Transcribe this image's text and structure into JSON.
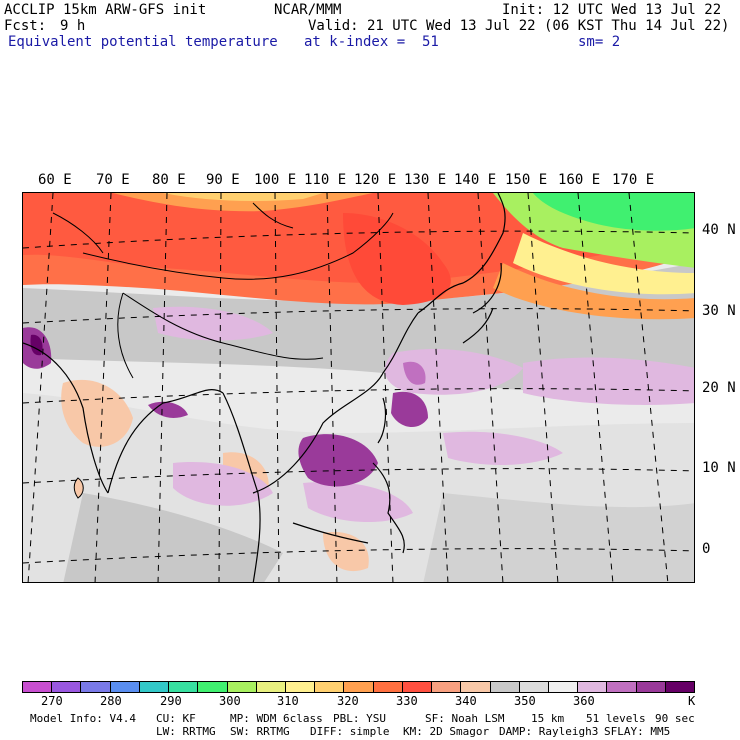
{
  "header": {
    "title": "ACCLIP 15km ARW-GFS init",
    "org": "NCAR/MMM",
    "init": "Init: 12 UTC Wed 13 Jul 22",
    "fcst_label": "Fcst:",
    "fcst_value": "9 h",
    "valid": "Valid: 21 UTC Wed 13 Jul 22 (06 KST Thu 14 Jul 22)",
    "field": "Equivalent potential temperature",
    "level": "at k-index =  51",
    "smooth": "sm= 2"
  },
  "map": {
    "longitudes": [
      "60 E",
      "70 E",
      "80 E",
      "90 E",
      "100 E",
      "110 E",
      "120 E",
      "130 E",
      "140 E",
      "150 E",
      "160 E",
      "170 E"
    ],
    "latitudes": [
      "40 N",
      "30 N",
      "20 N",
      "10 N",
      "0"
    ]
  },
  "colorbar": {
    "unit": "K",
    "labels": [
      "270",
      "280",
      "290",
      "300",
      "310",
      "320",
      "330",
      "340",
      "350",
      "360"
    ],
    "colors": [
      "#c84fd0",
      "#9a58e0",
      "#7a7ae8",
      "#5a8ef0",
      "#33c8c8",
      "#38e0a0",
      "#40f070",
      "#a8f060",
      "#e8f080",
      "#fff090",
      "#ffd070",
      "#ffa050",
      "#ff7040",
      "#ff5040",
      "#f8a080",
      "#f8c8a8",
      "#c8c8c8",
      "#dcdcdc",
      "#f0f0f0",
      "#e0b8e0",
      "#c070c0",
      "#9a3a9a",
      "#660066"
    ]
  },
  "footer": {
    "line1": [
      "Model Info: V4.4",
      "CU: KF",
      "MP: WDM 6class",
      "PBL: YSU",
      "SF: Noah LSM",
      "15 km",
      "51 levels",
      "90 sec"
    ],
    "line2": [
      "LW: RRTMG",
      "SW: RRTMG",
      "DIFF: simple",
      "KM: 2D Smagor",
      "DAMP: Rayleigh3",
      "SFLAY: MM5"
    ]
  }
}
